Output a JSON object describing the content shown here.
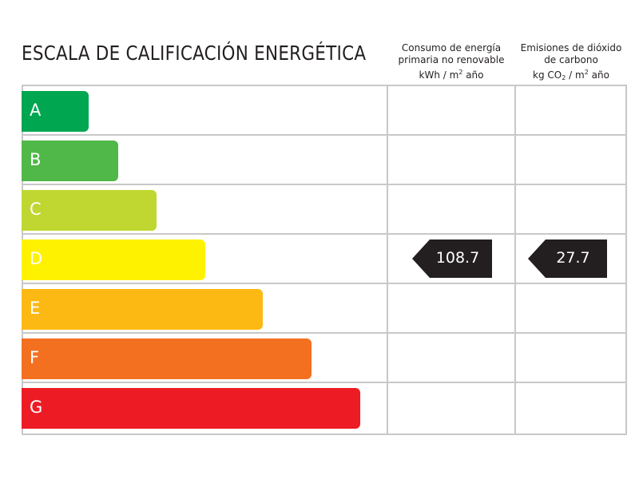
{
  "title": "ESCALA DE CALIFICACIÓN ENERGÉTICA",
  "columns": {
    "energy": {
      "line1": "Consumo de energía",
      "line2": "primaria no renovable",
      "unit_pre": "kWh / m",
      "unit_sup": "2",
      "unit_post": " año"
    },
    "emissions": {
      "line1": "Emisiones de dióxido",
      "line2": "de carbono",
      "unit_pre": "kg CO",
      "unit_sub": "2",
      "unit_mid": " / m",
      "unit_sup": "2",
      "unit_post": " año"
    }
  },
  "ratings": [
    {
      "letter": "A",
      "color": "#00a650"
    },
    {
      "letter": "B",
      "color": "#50b848"
    },
    {
      "letter": "C",
      "color": "#bfd730"
    },
    {
      "letter": "D",
      "color": "#fff200"
    },
    {
      "letter": "E",
      "color": "#fdb913"
    },
    {
      "letter": "F",
      "color": "#f37021"
    },
    {
      "letter": "G",
      "color": "#ed1c24"
    }
  ],
  "energy_value": {
    "value": "108.7",
    "rating": "D"
  },
  "emissions_value": {
    "value": "27.7",
    "rating": "D"
  },
  "marker_color": "#231f20"
}
